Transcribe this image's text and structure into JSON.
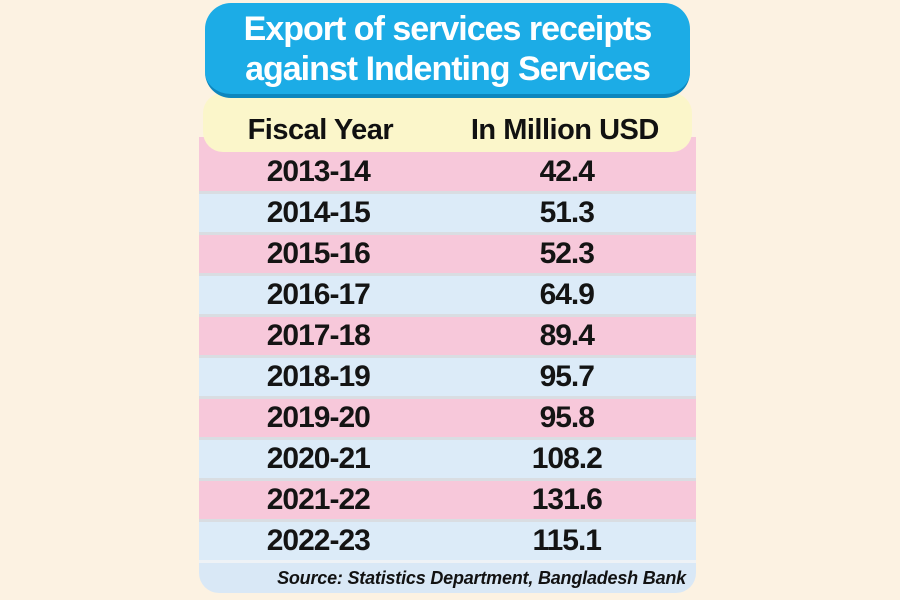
{
  "title": {
    "line1": "Export of services receipts",
    "line2": "against Indenting Services"
  },
  "table": {
    "columns": [
      "Fiscal Year",
      "In Million USD"
    ],
    "rows": [
      {
        "year": "2013-14",
        "value": "42.4"
      },
      {
        "year": "2014-15",
        "value": "51.3"
      },
      {
        "year": "2015-16",
        "value": "52.3"
      },
      {
        "year": "2016-17",
        "value": "64.9"
      },
      {
        "year": "2017-18",
        "value": "89.4"
      },
      {
        "year": "2018-19",
        "value": "95.7"
      },
      {
        "year": "2019-20",
        "value": "95.8"
      },
      {
        "year": "2020-21",
        "value": "108.2"
      },
      {
        "year": "2021-22",
        "value": "131.6"
      },
      {
        "year": "2022-23",
        "value": "115.1"
      }
    ]
  },
  "source": "Source: Statistics Department, Bangladesh Bank",
  "colors": {
    "page_background": "#fcf2e2",
    "banner_blue": "#1cace6",
    "banner_edge_blue": "#0d86bd",
    "header_yellow": "#fbf6ca",
    "row_pink": "#f7c8da",
    "row_blue": "#dcebf8",
    "footer_blue": "#d9e8f6",
    "divider_grey": "#d9dde2",
    "text_black": "#111111",
    "title_white": "#ffffff"
  },
  "chart_data": {
    "type": "table",
    "title": "Export of services receipts against Indenting Services",
    "columns": [
      "Fiscal Year",
      "In Million USD"
    ],
    "categories": [
      "2013-14",
      "2014-15",
      "2015-16",
      "2016-17",
      "2017-18",
      "2018-19",
      "2019-20",
      "2020-21",
      "2021-22",
      "2022-23"
    ],
    "values": [
      42.4,
      51.3,
      52.3,
      64.9,
      89.4,
      95.7,
      95.8,
      108.2,
      131.6,
      115.1
    ],
    "unit": "Million USD",
    "source": "Source: Statistics Department, Bangladesh Bank"
  }
}
